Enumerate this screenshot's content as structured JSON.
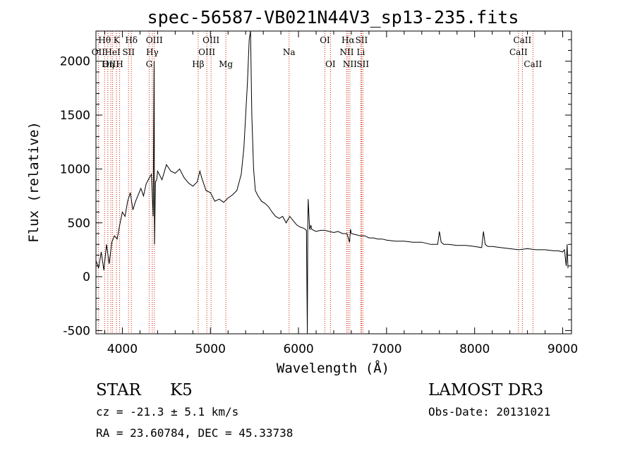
{
  "chart_data": {
    "type": "line",
    "title": "spec-56587-VB021N44V3_sp13-235.fits",
    "xlabel": "Wavelength (Å)",
    "ylabel": "Flux (relative)",
    "xlim": [
      3700,
      9100
    ],
    "ylim": [
      -530,
      2280
    ],
    "xticks": [
      4000,
      5000,
      6000,
      7000,
      8000,
      9000
    ],
    "xtick_labels": [
      "4000",
      "5000",
      "6000",
      "7000",
      "8000",
      "9000"
    ],
    "yticks": [
      -500,
      0,
      500,
      1000,
      1500,
      2000
    ],
    "ytick_labels": [
      "-500",
      "0",
      "500",
      "1000",
      "1500",
      "2000"
    ],
    "grid": false,
    "line_color": "#000000",
    "line_marker_color": "#cc2200",
    "spectrum": {
      "x": [
        3700,
        3730,
        3760,
        3790,
        3820,
        3850,
        3880,
        3910,
        3940,
        3970,
        4000,
        4030,
        4060,
        4090,
        4120,
        4150,
        4180,
        4210,
        4240,
        4270,
        4300,
        4330,
        4350,
        4360,
        4365,
        4375,
        4390,
        4400,
        4450,
        4500,
        4550,
        4600,
        4650,
        4700,
        4750,
        4800,
        4850,
        4880,
        4900,
        4950,
        5000,
        5050,
        5100,
        5150,
        5200,
        5250,
        5300,
        5350,
        5380,
        5400,
        5420,
        5440,
        5455,
        5470,
        5490,
        5510,
        5540,
        5580,
        5620,
        5660,
        5700,
        5740,
        5780,
        5820,
        5860,
        5900,
        5940,
        5980,
        6020,
        6060,
        6090,
        6100,
        6105,
        6110,
        6120,
        6125,
        6130,
        6140,
        6150,
        6200,
        6250,
        6300,
        6350,
        6400,
        6450,
        6500,
        6550,
        6580,
        6590,
        6600,
        6650,
        6700,
        6750,
        6800,
        6850,
        6900,
        6950,
        7000,
        7100,
        7200,
        7300,
        7400,
        7500,
        7580,
        7600,
        7620,
        7650,
        7700,
        7800,
        7900,
        8000,
        8080,
        8100,
        8120,
        8150,
        8200,
        8300,
        8400,
        8500,
        8600,
        8700,
        8800,
        8900,
        8950,
        9000,
        9020,
        9040,
        9050,
        9060
      ],
      "y": [
        150,
        80,
        230,
        60,
        300,
        120,
        320,
        380,
        350,
        480,
        600,
        560,
        700,
        780,
        620,
        700,
        760,
        820,
        750,
        860,
        910,
        950,
        560,
        2000,
        300,
        880,
        900,
        980,
        900,
        1040,
        980,
        960,
        1000,
        920,
        870,
        840,
        880,
        980,
        920,
        800,
        780,
        700,
        720,
        690,
        730,
        760,
        800,
        950,
        1200,
        1500,
        1800,
        2200,
        2300,
        1500,
        1000,
        800,
        750,
        700,
        680,
        650,
        600,
        560,
        540,
        560,
        500,
        560,
        520,
        480,
        460,
        450,
        430,
        -600,
        460,
        720,
        540,
        450,
        440,
        480,
        440,
        420,
        430,
        430,
        420,
        410,
        420,
        400,
        400,
        320,
        440,
        400,
        390,
        380,
        380,
        360,
        360,
        350,
        350,
        340,
        330,
        330,
        320,
        320,
        300,
        300,
        420,
        320,
        300,
        300,
        290,
        290,
        280,
        270,
        420,
        300,
        280,
        280,
        270,
        260,
        250,
        260,
        250,
        250,
        240,
        240,
        230,
        250,
        100,
        300,
        80
      ]
    },
    "line_ids": [
      {
        "label": "Hθ",
        "wavelength": 3798,
        "row": 1
      },
      {
        "label": "OII",
        "wavelength": 3727,
        "row": 2
      },
      {
        "label": "OIII",
        "wavelength": 3869,
        "row": 3
      },
      {
        "label": "K",
        "wavelength": 3934,
        "row": 1
      },
      {
        "label": "HeI",
        "wavelength": 3889,
        "row": 2
      },
      {
        "label": "Hη",
        "wavelength": 3835,
        "row": 3
      },
      {
        "label": "Hδ",
        "wavelength": 4102,
        "row": 1
      },
      {
        "label": "SII",
        "wavelength": 4070,
        "row": 2
      },
      {
        "label": "H",
        "wavelength": 3969,
        "row": 3
      },
      {
        "label": "OIII",
        "wavelength": 4363,
        "row": 1
      },
      {
        "label": "Hγ",
        "wavelength": 4340,
        "row": 2
      },
      {
        "label": "G",
        "wavelength": 4304,
        "row": 3
      },
      {
        "label": "OIII",
        "wavelength": 5007,
        "row": 1
      },
      {
        "label": "OIII",
        "wavelength": 4959,
        "row": 2
      },
      {
        "label": "Hβ",
        "wavelength": 4861,
        "row": 3
      },
      {
        "label": "Mg",
        "wavelength": 5175,
        "row": 3
      },
      {
        "label": "Na",
        "wavelength": 5893,
        "row": 2
      },
      {
        "label": "OI",
        "wavelength": 6300,
        "row": 1
      },
      {
        "label": "OI",
        "wavelength": 6363,
        "row": 3
      },
      {
        "label": "Hα",
        "wavelength": 6563,
        "row": 1
      },
      {
        "label": "SII",
        "wavelength": 6716,
        "row": 1
      },
      {
        "label": "NII",
        "wavelength": 6548,
        "row": 2
      },
      {
        "label": "Li",
        "wavelength": 6708,
        "row": 2
      },
      {
        "label": "NII",
        "wavelength": 6583,
        "row": 3
      },
      {
        "label": "SII",
        "wavelength": 6731,
        "row": 3
      },
      {
        "label": "CaII",
        "wavelength": 8542,
        "row": 1
      },
      {
        "label": "CaII",
        "wavelength": 8498,
        "row": 2
      },
      {
        "label": "CaII",
        "wavelength": 8662,
        "row": 3
      }
    ]
  },
  "info": {
    "object_type": "STAR",
    "subclass": "K5",
    "survey": "LAMOST DR3",
    "velocity": "cz = -21.3 ± 5.1 km/s",
    "obs_date": "Obs-Date: 20131021",
    "coords": "RA =  23.60784, DEC =  45.33738"
  }
}
